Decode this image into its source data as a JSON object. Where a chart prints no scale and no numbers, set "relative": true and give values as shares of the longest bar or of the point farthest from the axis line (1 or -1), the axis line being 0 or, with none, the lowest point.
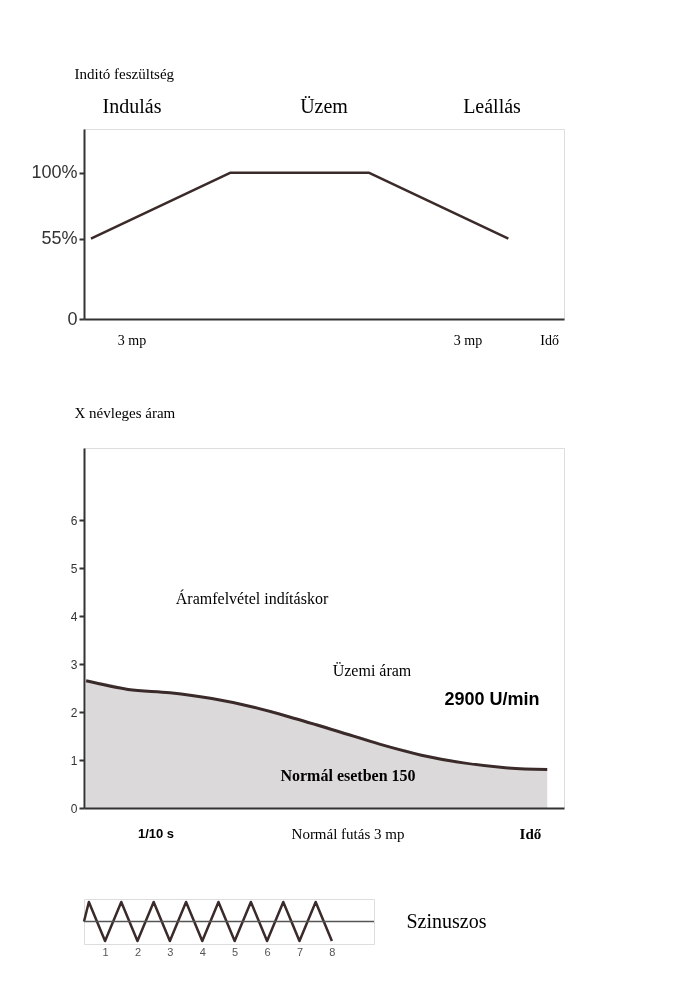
{
  "chart_data": [
    {
      "type": "line",
      "ylabel": "Inditó feszültség",
      "annotations": [
        "Indulás",
        "Üzem",
        "Leállás",
        "3 mp",
        "3 mp",
        "Idő"
      ],
      "categories": [
        null,
        null,
        null,
        null
      ],
      "series": [
        {
          "color": "#3a2a2a",
          "values": [
            55,
            100,
            100,
            55
          ]
        }
      ],
      "ylim": [
        0,
        130
      ],
      "yticks": [
        0,
        {
          "value": 55,
          "label": "55%"
        },
        {
          "value": 100,
          "label": "100%"
        }
      ]
    },
    {
      "type": "area",
      "ylabel": "X névleges áram",
      "annotations": [
        "Áramfelvétel indításkor",
        "Üzemi áram",
        "2900 U/min",
        "Normál esetben 150",
        "1/10 s",
        "Normál futás 3 mp",
        "Idő"
      ],
      "categories": [
        null,
        null,
        null,
        null,
        null,
        null,
        null,
        null,
        null,
        null,
        null,
        null
      ],
      "series": [
        {
          "color": "#3a2a2a",
          "values": [
            2.65,
            2.47,
            2.4,
            2.28,
            2.1,
            1.86,
            1.6,
            1.33,
            1.1,
            0.94,
            0.84,
            0.8
          ]
        }
      ],
      "ylim": [
        0,
        7.5
      ],
      "yticks": [
        0,
        1,
        2,
        3,
        4,
        5,
        6
      ]
    },
    {
      "type": "line",
      "relative": true,
      "annotations": [
        "Szinuszos"
      ],
      "x": [
        0.35,
        0.5,
        1,
        1.5,
        2,
        2.5,
        3,
        3.5,
        4,
        4.5,
        5,
        5.5,
        6,
        6.5,
        7,
        7.5,
        8
      ],
      "series": [
        {
          "color": "#3a2a2a",
          "values": [
            0,
            1,
            -1,
            1,
            -1,
            1,
            -1,
            1,
            -1,
            1,
            -1,
            1,
            -1,
            1,
            -1,
            1,
            -1
          ]
        }
      ],
      "xlim": [
        0.35,
        9.3
      ],
      "xticks": [
        1,
        2,
        3,
        4,
        5,
        6,
        7,
        8
      ]
    }
  ]
}
